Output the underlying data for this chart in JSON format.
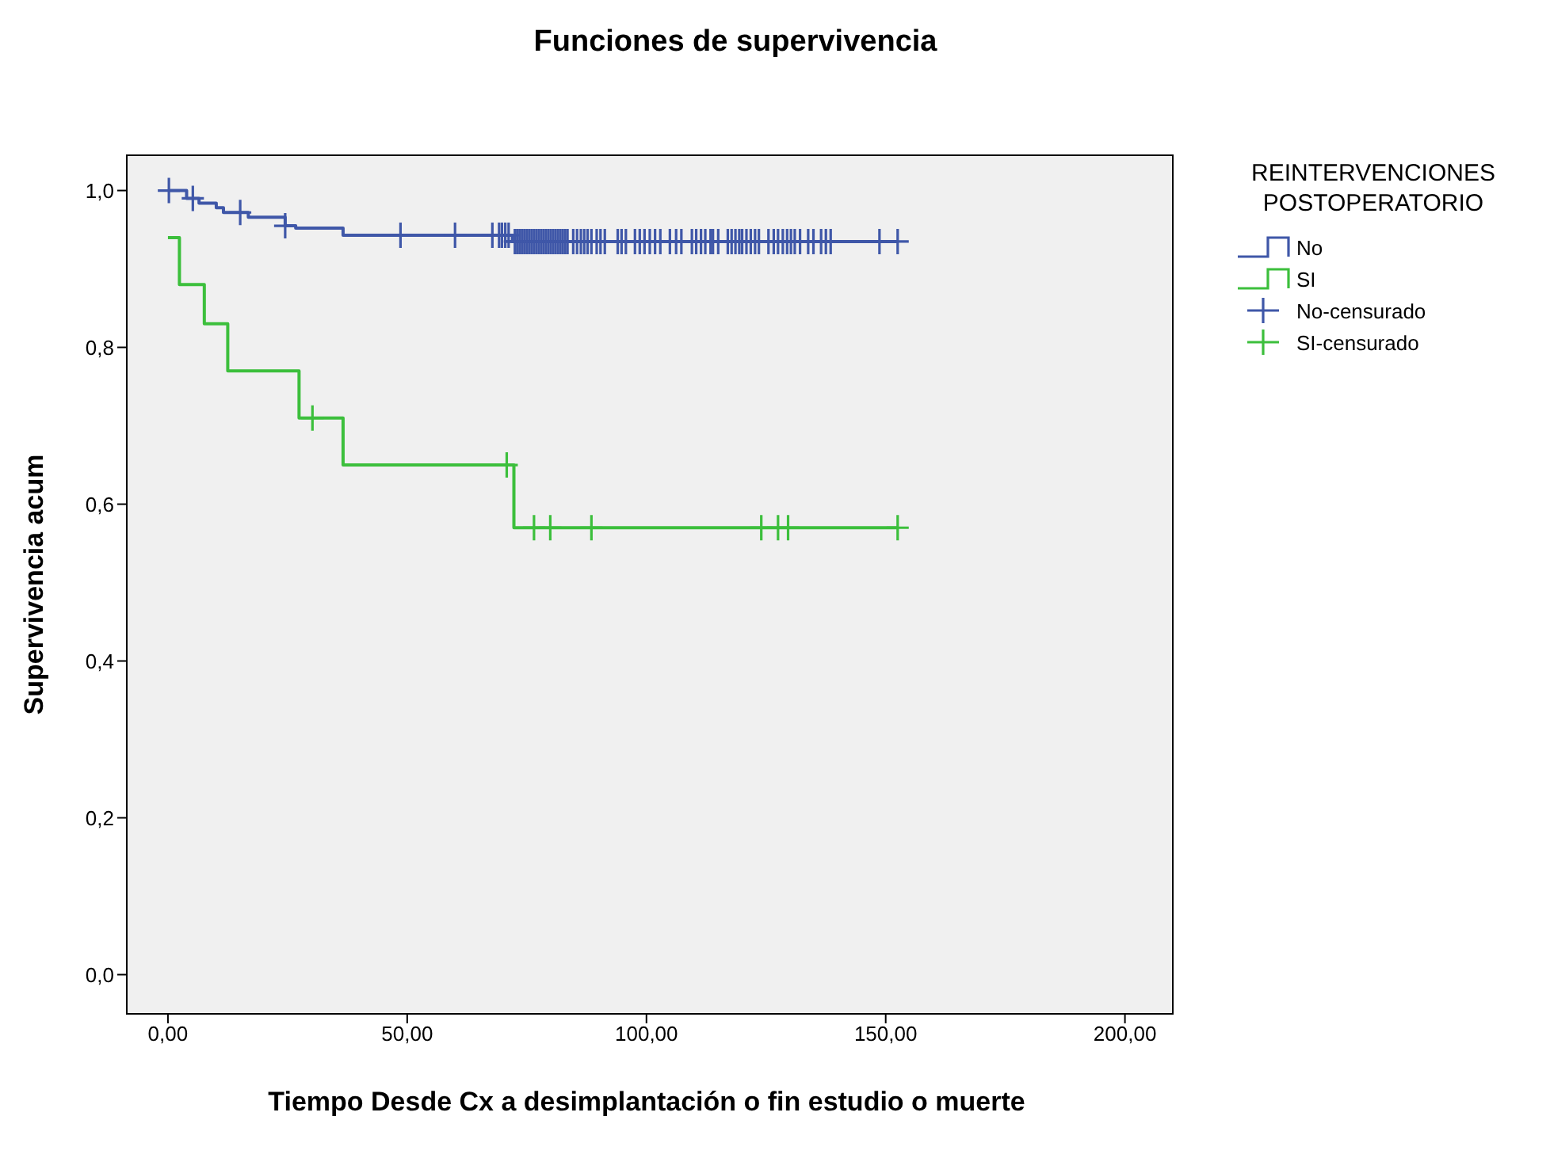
{
  "chart_data": {
    "type": "step",
    "title": "Funciones de supervivencia",
    "xlabel": "Tiempo Desde Cx a desimplantación o fin estudio o muerte",
    "ylabel": "Supervivencia acum",
    "legend_title": "REINTERVENCIONES POSTOPERATORIO",
    "xlim": [
      -8.6,
      210
    ],
    "xticks": [
      {
        "value": 0,
        "label": "0,00"
      },
      {
        "value": 50,
        "label": "50,00"
      },
      {
        "value": 100,
        "label": "100,00"
      },
      {
        "value": 150,
        "label": "150,00"
      },
      {
        "value": 200,
        "label": "200,00"
      }
    ],
    "ylim": [
      -0.05,
      1.045
    ],
    "yticks": [
      {
        "value": 0,
        "label": "0,0"
      },
      {
        "value": 0.2,
        "label": "0,2"
      },
      {
        "value": 0.4,
        "label": "0,4"
      },
      {
        "value": 0.6,
        "label": "0,6"
      },
      {
        "value": 0.8,
        "label": "0,8"
      },
      {
        "value": 1,
        "label": "1,0"
      }
    ],
    "legend": "right",
    "series": [
      {
        "name": "No",
        "color": "#3f57a8",
        "x": [
          0,
          3.9,
          6.5,
          10.1,
          11.6,
          16.8,
          24.5,
          26.7,
          36.6,
          72,
          152.5
        ],
        "values": [
          1,
          0.99,
          0.984,
          0.978,
          0.972,
          0.966,
          0.955,
          0.952,
          0.943,
          0.935,
          0.935
        ]
      },
      {
        "name": "SI",
        "color": "#3cbf3c",
        "x": [
          0,
          2.4,
          7.6,
          12.5,
          27.4,
          36.6,
          72.3,
          152.5
        ],
        "values": [
          0.94,
          0.88,
          0.83,
          0.77,
          0.71,
          0.65,
          0.57,
          0.57
        ]
      },
      {
        "name": "No-censurado",
        "type": "scatter",
        "marker": "cross",
        "color": "#3f57a8",
        "x": [
          0.2,
          5.2,
          15.1,
          24.5,
          48.6,
          60,
          67.8,
          69.2,
          69.8,
          70.5,
          71.2,
          72.5,
          73,
          73.5,
          74,
          74.5,
          75,
          75.5,
          76,
          76.5,
          77,
          77.5,
          78,
          78.5,
          79,
          79.5,
          80,
          80.5,
          81,
          81.5,
          82,
          82.5,
          83,
          83.5,
          84.7,
          85.5,
          86.3,
          87,
          87.7,
          88.5,
          89.6,
          90.4,
          91.3,
          94,
          94.8,
          95.7,
          97.6,
          98.6,
          99.6,
          100.7,
          101.8,
          102.9,
          104.9,
          106.2,
          107.3,
          109.5,
          110.4,
          111.4,
          112.3,
          113.4,
          113.9,
          115,
          117,
          117.8,
          118.6,
          119.4,
          120,
          120.9,
          121.8,
          122.7,
          123.5,
          125.5,
          126.6,
          127.5,
          128.5,
          129.4,
          130.2,
          131,
          132.1,
          133.8,
          134.9,
          136.5,
          137.5,
          138.5,
          148.7,
          152.5
        ],
        "values": [
          1,
          0.99,
          0.972,
          0.955,
          0.943,
          0.943,
          0.943,
          0.943,
          0.943,
          0.943,
          0.943,
          0.935,
          0.935,
          0.935,
          0.935,
          0.935,
          0.935,
          0.935,
          0.935,
          0.935,
          0.935,
          0.935,
          0.935,
          0.935,
          0.935,
          0.935,
          0.935,
          0.935,
          0.935,
          0.935,
          0.935,
          0.935,
          0.935,
          0.935,
          0.935,
          0.935,
          0.935,
          0.935,
          0.935,
          0.935,
          0.935,
          0.935,
          0.935,
          0.935,
          0.935,
          0.935,
          0.935,
          0.935,
          0.935,
          0.935,
          0.935,
          0.935,
          0.935,
          0.935,
          0.935,
          0.935,
          0.935,
          0.935,
          0.935,
          0.935,
          0.935,
          0.935,
          0.935,
          0.935,
          0.935,
          0.935,
          0.935,
          0.935,
          0.935,
          0.935,
          0.935,
          0.935,
          0.935,
          0.935,
          0.935,
          0.935,
          0.935,
          0.935,
          0.935,
          0.935,
          0.935,
          0.935,
          0.935,
          0.935,
          0.935,
          0.935
        ]
      },
      {
        "name": "SI-censurado",
        "type": "scatter",
        "marker": "cross",
        "color": "#3cbf3c",
        "x": [
          30.2,
          70.8,
          76.5,
          79.9,
          88.5,
          124,
          127.5,
          129.6,
          152.5
        ],
        "values": [
          0.71,
          0.65,
          0.57,
          0.57,
          0.57,
          0.57,
          0.57,
          0.57,
          0.57
        ]
      }
    ]
  }
}
